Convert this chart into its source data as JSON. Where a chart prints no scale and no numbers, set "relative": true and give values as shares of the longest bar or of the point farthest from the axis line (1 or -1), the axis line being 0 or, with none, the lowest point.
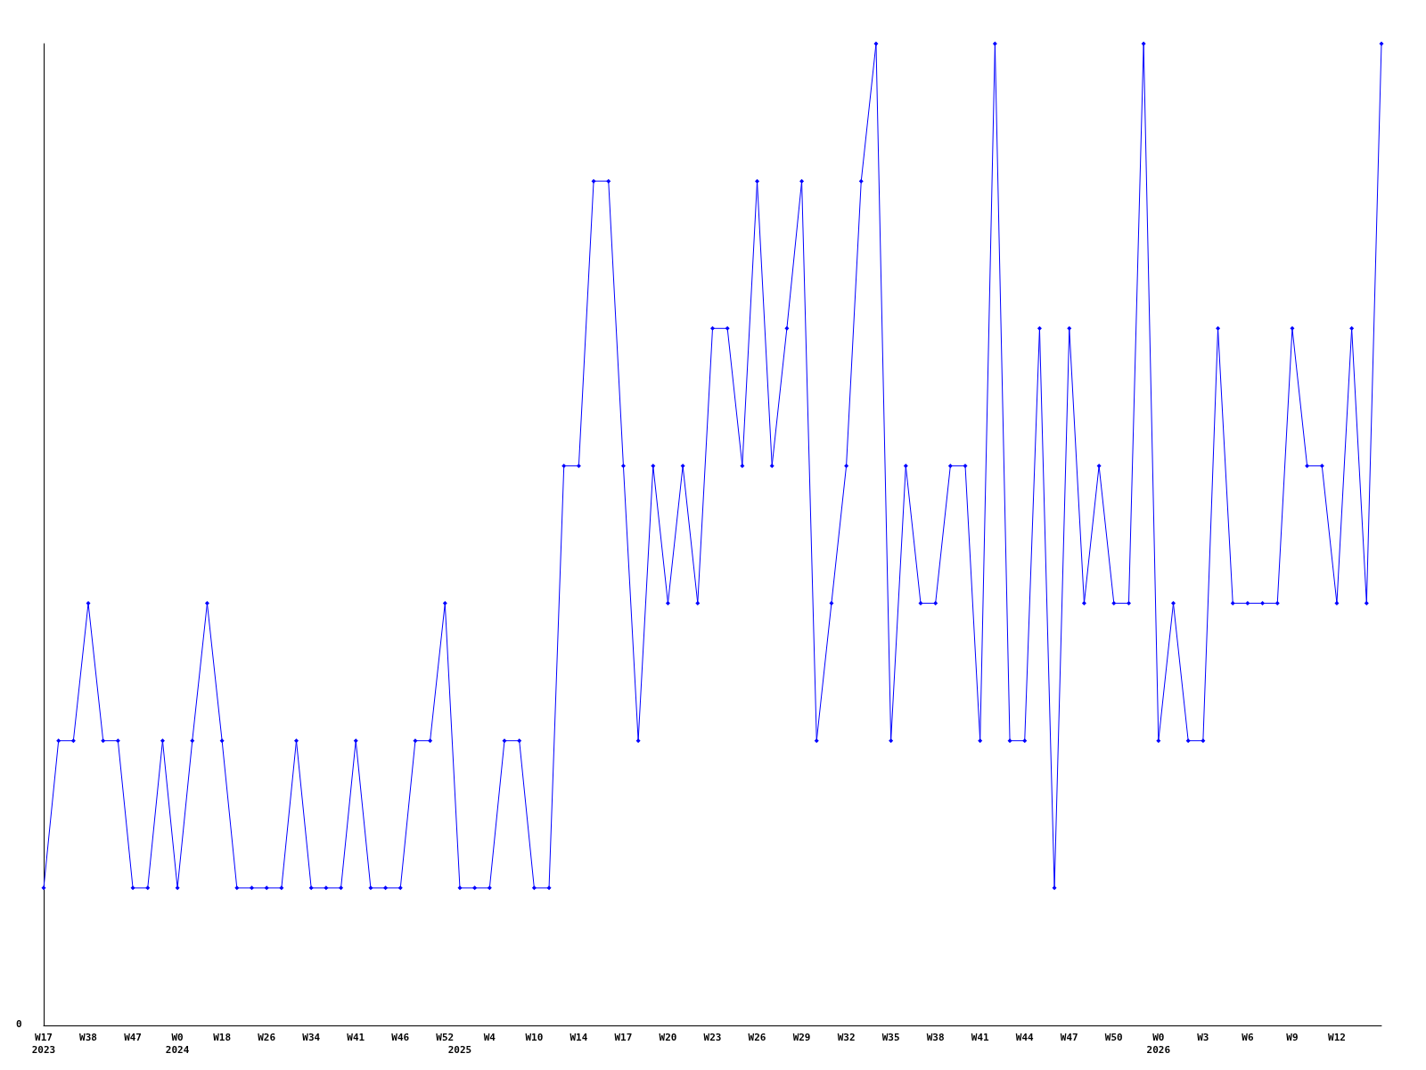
{
  "chart_data": {
    "type": "line",
    "relative": true,
    "marker": "diamond",
    "grid": false,
    "annotations": [
      "0"
    ],
    "categories": [
      "W17\n2023",
      null,
      null,
      "W38",
      null,
      null,
      "W47",
      null,
      null,
      "W0\n2024",
      null,
      null,
      "W18",
      null,
      null,
      "W26",
      null,
      null,
      "W34",
      null,
      null,
      "W41",
      null,
      null,
      "W46",
      null,
      null,
      "W52",
      "\n2025",
      null,
      "W4",
      null,
      null,
      "W10",
      null,
      null,
      "W14",
      null,
      null,
      "W17",
      null,
      null,
      "W20",
      null,
      null,
      "W23",
      null,
      null,
      "W26",
      null,
      null,
      "W29",
      null,
      null,
      "W32",
      null,
      null,
      "W35",
      null,
      null,
      "W38",
      null,
      null,
      "W41",
      null,
      null,
      "W44",
      null,
      null,
      "W47",
      null,
      null,
      "W50",
      null,
      null,
      "W0\n2026",
      null,
      null,
      "W3",
      null,
      null,
      "W6",
      null,
      null,
      "W9",
      null,
      null,
      "W12",
      null,
      null,
      null
    ],
    "series": [
      {
        "color": "#0000ff",
        "values": [
          0.14,
          0.29,
          0.29,
          0.43,
          0.29,
          0.29,
          0.14,
          0.14,
          0.29,
          0.14,
          0.29,
          0.43,
          0.29,
          0.14,
          0.14,
          0.14,
          0.14,
          0.29,
          0.14,
          0.14,
          0.14,
          0.29,
          0.14,
          0.14,
          0.14,
          0.29,
          0.29,
          0.43,
          0.14,
          0.14,
          0.14,
          0.29,
          0.29,
          0.14,
          0.14,
          0.57,
          0.57,
          0.86,
          0.86,
          0.57,
          0.29,
          0.57,
          0.43,
          0.57,
          0.43,
          0.71,
          0.71,
          0.57,
          0.86,
          0.57,
          0.71,
          0.86,
          0.29,
          0.43,
          0.57,
          0.86,
          1,
          0.29,
          0.57,
          0.43,
          0.43,
          0.57,
          0.57,
          0.29,
          1,
          0.29,
          0.29,
          0.71,
          0.14,
          0.71,
          0.43,
          0.57,
          0.43,
          0.43,
          1,
          0.29,
          0.43,
          0.29,
          0.29,
          0.71,
          0.43,
          0.43,
          0.43,
          0.43,
          0.71,
          0.57,
          0.57,
          0.43,
          0.71,
          0.43,
          1
        ]
      }
    ]
  }
}
